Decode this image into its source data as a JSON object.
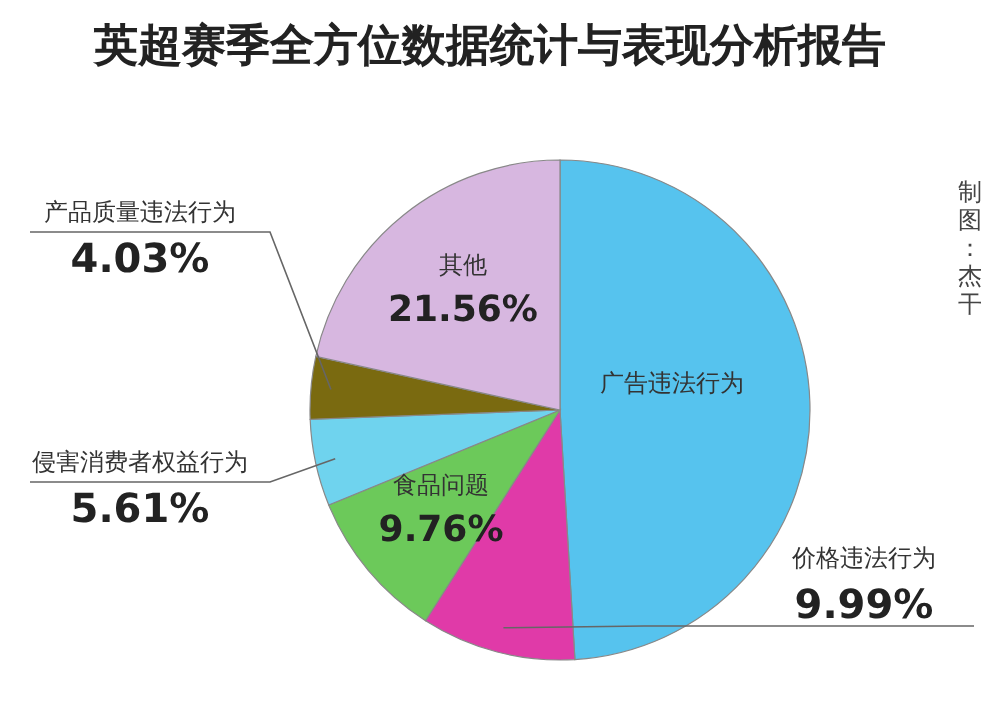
{
  "chart_data": {
    "type": "pie",
    "title": "英超赛季全方位数据统计与表现分析报告",
    "categories": [
      "广告违法行为",
      "价格违法行为",
      "食品问题",
      "侵害消费者权益行为",
      "产品质量违法行为",
      "其他"
    ],
    "values": [
      49.05,
      9.99,
      9.76,
      5.61,
      4.03,
      21.56
    ],
    "value_labels": [
      null,
      "9.99%",
      "9.76%",
      "5.61%",
      "4.03%",
      "21.56%"
    ],
    "colors": [
      "#56c3ee",
      "#e03aa8",
      "#6cc95a",
      "#6fd3ee",
      "#7a6a10",
      "#d7b7e0"
    ],
    "annotations": [
      "制图：杰干"
    ]
  }
}
